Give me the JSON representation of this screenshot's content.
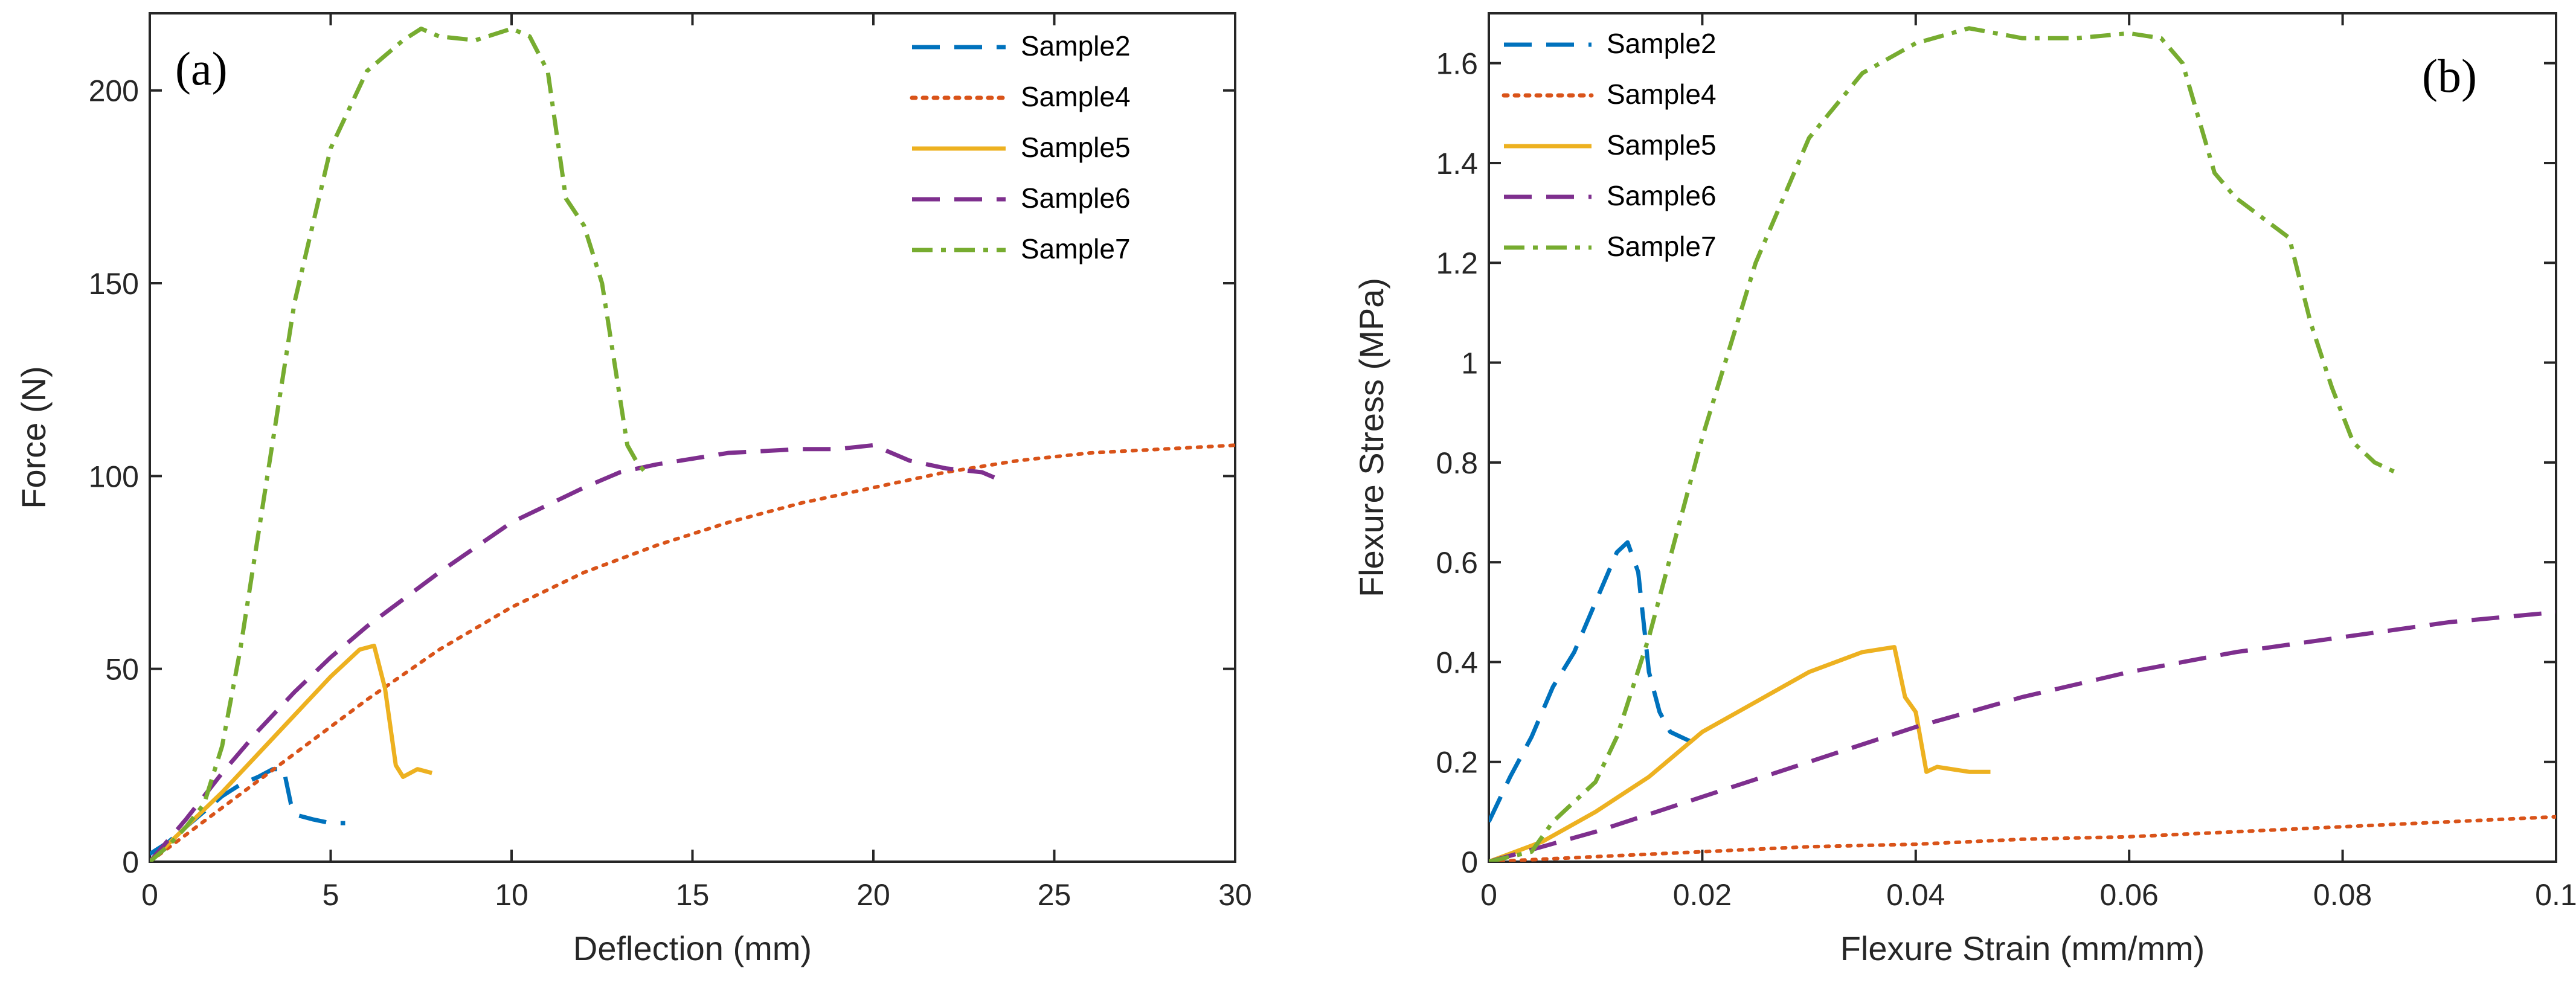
{
  "chart_data": [
    {
      "type": "line",
      "panel_label": "(a)",
      "xlabel": "Deflection (mm)",
      "ylabel": "Force (N)",
      "xlim": [
        0,
        30
      ],
      "ylim": [
        0,
        220
      ],
      "xticks": [
        0,
        5,
        10,
        15,
        20,
        25,
        30
      ],
      "yticks": [
        0,
        50,
        100,
        150,
        200
      ],
      "legend_position": "top-right",
      "series": [
        {
          "name": "Sample2",
          "color": "#0072bd",
          "style": "dashed",
          "x": [
            0,
            0.5,
            1,
            1.5,
            2,
            2.5,
            3,
            3.4,
            3.7,
            3.9,
            4.1,
            4.5,
            5,
            5.4
          ],
          "y": [
            2,
            5,
            9,
            13,
            17,
            20,
            22,
            24,
            24,
            15,
            12,
            11,
            10,
            10
          ]
        },
        {
          "name": "Sample4",
          "color": "#d95319",
          "style": "dotted",
          "x": [
            0,
            2,
            4,
            6,
            8,
            10,
            12,
            14,
            16,
            18,
            20,
            22,
            24,
            26,
            28,
            30
          ],
          "y": [
            0,
            14,
            28,
            42,
            55,
            66,
            75,
            82,
            88,
            93,
            97,
            101,
            104,
            106,
            107,
            108
          ]
        },
        {
          "name": "Sample5",
          "color": "#edb120",
          "style": "solid",
          "x": [
            0,
            1,
            2,
            3,
            4,
            5,
            5.8,
            6.2,
            6.5,
            6.8,
            7,
            7.4,
            7.8
          ],
          "y": [
            0,
            9,
            18,
            28,
            38,
            48,
            55,
            56,
            45,
            25,
            22,
            24,
            23
          ]
        },
        {
          "name": "Sample6",
          "color": "#7e2f8e",
          "style": "dashed",
          "x": [
            0,
            1,
            2,
            3,
            4,
            5,
            6,
            8,
            10,
            12,
            13,
            14,
            16,
            18,
            19,
            20,
            21,
            22,
            23,
            23.5
          ],
          "y": [
            0,
            11,
            23,
            34,
            44,
            53,
            61,
            75,
            88,
            97,
            101,
            103,
            106,
            107,
            107,
            108,
            104,
            102,
            101,
            99
          ]
        },
        {
          "name": "Sample7",
          "color": "#77ac30",
          "style": "dashdot",
          "x": [
            0,
            0.5,
            1,
            1.5,
            2,
            2.5,
            3,
            3.5,
            4,
            5,
            6,
            7,
            7.5,
            8,
            9,
            10,
            10.5,
            11,
            11.5,
            12,
            12.5,
            13,
            13.2,
            13.5,
            13.8
          ],
          "y": [
            0,
            4,
            9,
            15,
            30,
            55,
            85,
            115,
            145,
            185,
            205,
            213,
            216,
            214,
            213,
            216,
            214,
            205,
            172,
            165,
            150,
            120,
            108,
            103,
            100
          ]
        }
      ]
    },
    {
      "type": "line",
      "panel_label": "(b)",
      "xlabel": "Flexure Strain (mm/mm)",
      "ylabel": "Flexure Stress (MPa)",
      "xlim": [
        0,
        0.1
      ],
      "ylim": [
        0,
        1.7
      ],
      "xticks": [
        0,
        0.02,
        0.04,
        0.06,
        0.08,
        0.1
      ],
      "xtick_labels": [
        "0",
        "0.02",
        "0.04",
        "0.06",
        "0.08",
        "0.1"
      ],
      "yticks": [
        0,
        0.2,
        0.4,
        0.6,
        0.8,
        1,
        1.2,
        1.4,
        1.6
      ],
      "ytick_labels": [
        "0",
        "0.2",
        "0.4",
        "0.6",
        "0.8",
        "1",
        "1.2",
        "1.4",
        "1.6"
      ],
      "legend_position": "top-left",
      "series": [
        {
          "name": "Sample2",
          "color": "#0072bd",
          "style": "dashed",
          "x": [
            0,
            0.002,
            0.004,
            0.006,
            0.008,
            0.01,
            0.012,
            0.013,
            0.014,
            0.015,
            0.016,
            0.017,
            0.018,
            0.019
          ],
          "y": [
            0.08,
            0.17,
            0.25,
            0.35,
            0.42,
            0.52,
            0.62,
            0.64,
            0.58,
            0.38,
            0.3,
            0.26,
            0.25,
            0.24
          ]
        },
        {
          "name": "Sample4",
          "color": "#d95319",
          "style": "dotted",
          "x": [
            0,
            0.01,
            0.02,
            0.03,
            0.04,
            0.05,
            0.06,
            0.07,
            0.08,
            0.09,
            0.1
          ],
          "y": [
            0,
            0.01,
            0.02,
            0.03,
            0.035,
            0.045,
            0.05,
            0.06,
            0.07,
            0.08,
            0.09
          ]
        },
        {
          "name": "Sample5",
          "color": "#edb120",
          "style": "solid",
          "x": [
            0,
            0.005,
            0.01,
            0.015,
            0.02,
            0.025,
            0.03,
            0.035,
            0.038,
            0.039,
            0.04,
            0.041,
            0.042,
            0.045,
            0.047
          ],
          "y": [
            0,
            0.04,
            0.1,
            0.17,
            0.26,
            0.32,
            0.38,
            0.42,
            0.43,
            0.33,
            0.3,
            0.18,
            0.19,
            0.18,
            0.18
          ]
        },
        {
          "name": "Sample6",
          "color": "#7e2f8e",
          "style": "dashed",
          "x": [
            0,
            0.01,
            0.02,
            0.03,
            0.04,
            0.05,
            0.06,
            0.07,
            0.08,
            0.09,
            0.1
          ],
          "y": [
            0,
            0.06,
            0.13,
            0.2,
            0.27,
            0.33,
            0.38,
            0.42,
            0.45,
            0.48,
            0.5
          ]
        },
        {
          "name": "Sample7",
          "color": "#77ac30",
          "style": "dashdot",
          "x": [
            0,
            0.004,
            0.006,
            0.008,
            0.01,
            0.012,
            0.015,
            0.02,
            0.025,
            0.03,
            0.035,
            0.04,
            0.045,
            0.05,
            0.055,
            0.06,
            0.063,
            0.065,
            0.068,
            0.07,
            0.075,
            0.077,
            0.079,
            0.081,
            0.083,
            0.085
          ],
          "y": [
            0,
            0.02,
            0.08,
            0.12,
            0.16,
            0.25,
            0.45,
            0.85,
            1.2,
            1.45,
            1.58,
            1.64,
            1.67,
            1.65,
            1.65,
            1.66,
            1.65,
            1.6,
            1.38,
            1.33,
            1.25,
            1.08,
            0.95,
            0.84,
            0.8,
            0.78
          ]
        }
      ]
    }
  ]
}
